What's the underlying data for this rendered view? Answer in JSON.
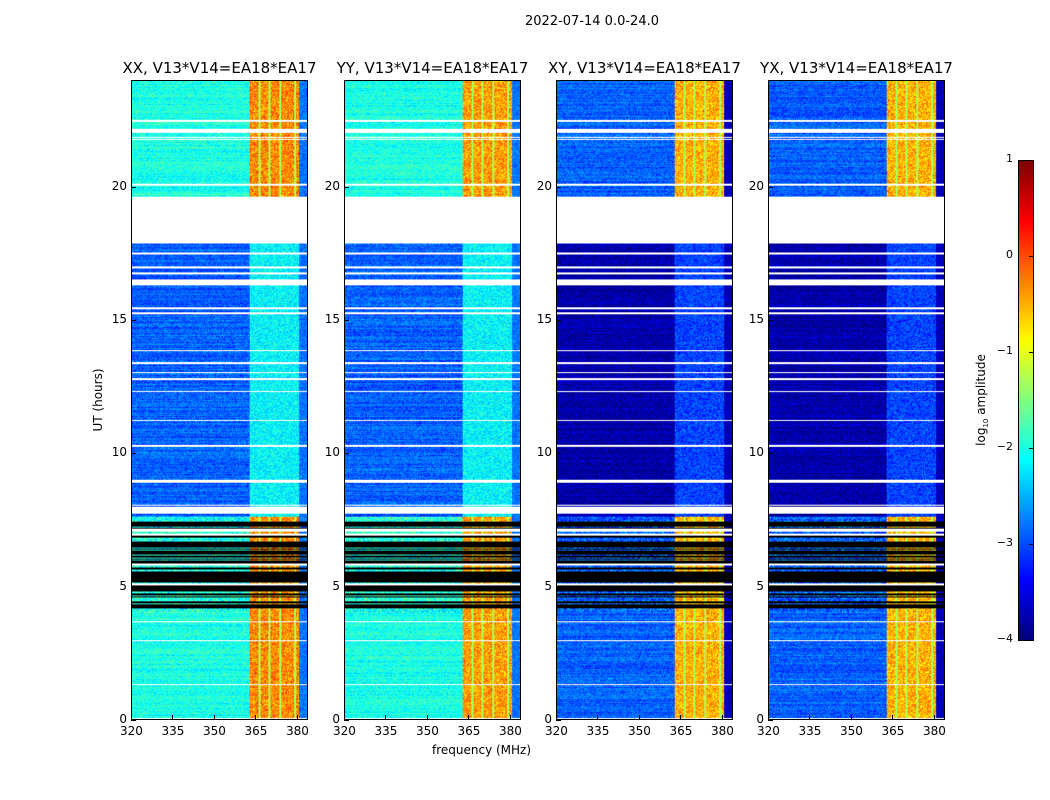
{
  "chart_data": {
    "type": "heatmap",
    "title": "2022-07-14 0.0-24.0",
    "xlabel": "frequency (MHz)",
    "ylabel": "UT (hours)",
    "xlim": [
      320,
      384
    ],
    "ylim": [
      0,
      24
    ],
    "xticks": [
      "320",
      "335",
      "350",
      "365",
      "380"
    ],
    "xtick_values": [
      320,
      335,
      350,
      365,
      380
    ],
    "yticks": [
      "0",
      "5",
      "10",
      "15",
      "20"
    ],
    "ytick_values": [
      0,
      5,
      10,
      15,
      20
    ],
    "panels": [
      {
        "title": "XX, V13*V14=EA18*EA17",
        "base_level": -2.0,
        "rfi_level": -0.3
      },
      {
        "title": "YY, V13*V14=EA18*EA17",
        "base_level": -2.0,
        "rfi_level": -0.4
      },
      {
        "title": "XY, V13*V14=EA18*EA17",
        "base_level": -2.9,
        "rfi_level": -0.5
      },
      {
        "title": "YX, V13*V14=EA18*EA17",
        "base_level": -2.9,
        "rfi_level": -0.5
      }
    ],
    "rfi_band_mhz": [
      363,
      381
    ],
    "flagged_gap_hours": [
      17.9,
      19.6
    ],
    "noisy_interval_hours": [
      4.0,
      7.6
    ],
    "colorbar": {
      "label": "log10 amplitude",
      "label_main": "log",
      "label_sub": "10",
      "label_rest": " amplitude",
      "range": [
        -4,
        1
      ],
      "ticks": [
        "−4",
        "−3",
        "−2",
        "−1",
        "0",
        "1"
      ],
      "tick_values": [
        -4,
        -3,
        -2,
        -1,
        0,
        1
      ],
      "colormap": "jet"
    }
  }
}
